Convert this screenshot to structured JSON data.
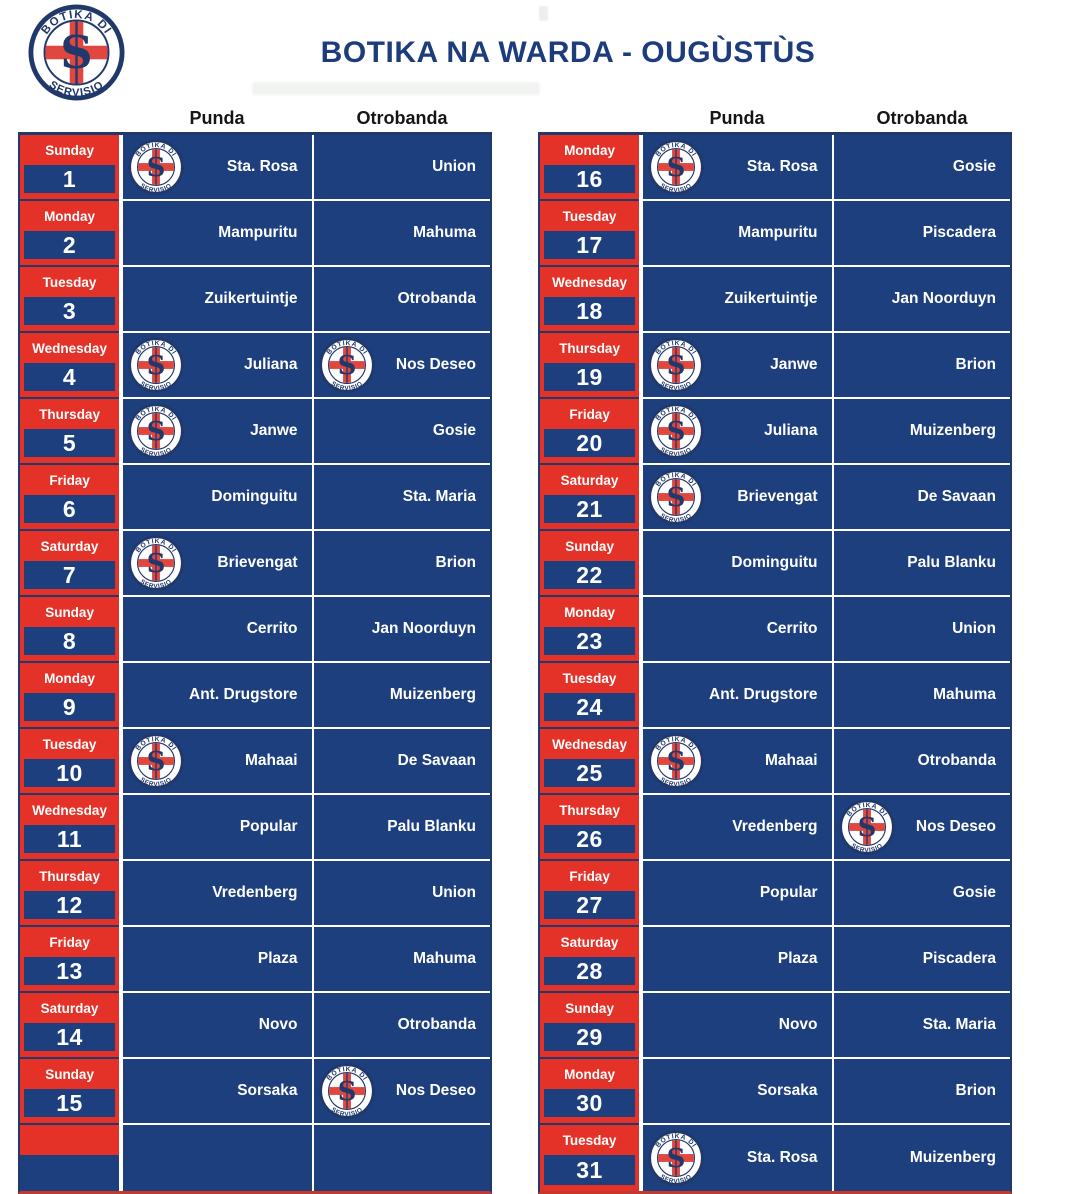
{
  "page": {
    "title": "BOTIKA NA WARDA - OUGÙSTÙS",
    "logo": {
      "top_text": "BOTIKA DI",
      "bottom_text": "SERVISIO"
    },
    "column_headers": {
      "punda": "Punda",
      "otrobanda": "Otrobanda"
    }
  },
  "colors": {
    "red": "#e43229",
    "navy": "#1d3f7e",
    "navy_dark": "#21386b",
    "red_border": "#c03a30",
    "title_navy": "#1d3c7c",
    "cell_text": "#ffffff",
    "header_text": "#151515"
  },
  "schedule": {
    "tables": [
      {
        "name": "days-1-15",
        "rows": [
          {
            "day": "Sunday",
            "date": "1",
            "punda": "Sta. Rosa",
            "punda_logo": true,
            "otrobanda": "Union",
            "otrobanda_logo": false
          },
          {
            "day": "Monday",
            "date": "2",
            "punda": "Mampuritu",
            "punda_logo": false,
            "otrobanda": "Mahuma",
            "otrobanda_logo": false
          },
          {
            "day": "Tuesday",
            "date": "3",
            "punda": "Zuikertuintje",
            "punda_logo": false,
            "otrobanda": "Otrobanda",
            "otrobanda_logo": false
          },
          {
            "day": "Wednesday",
            "date": "4",
            "punda": "Juliana",
            "punda_logo": true,
            "otrobanda": "Nos Deseo",
            "otrobanda_logo": true
          },
          {
            "day": "Thursday",
            "date": "5",
            "punda": "Janwe",
            "punda_logo": true,
            "otrobanda": "Gosie",
            "otrobanda_logo": false
          },
          {
            "day": "Friday",
            "date": "6",
            "punda": "Dominguitu",
            "punda_logo": false,
            "otrobanda": "Sta. Maria",
            "otrobanda_logo": false
          },
          {
            "day": "Saturday",
            "date": "7",
            "punda": "Brievengat",
            "punda_logo": true,
            "otrobanda": "Brion",
            "otrobanda_logo": false
          },
          {
            "day": "Sunday",
            "date": "8",
            "punda": "Cerrito",
            "punda_logo": false,
            "otrobanda": "Jan Noorduyn",
            "otrobanda_logo": false
          },
          {
            "day": "Monday",
            "date": "9",
            "punda": "Ant. Drugstore",
            "punda_logo": false,
            "otrobanda": "Muizenberg",
            "otrobanda_logo": false
          },
          {
            "day": "Tuesday",
            "date": "10",
            "punda": "Mahaai",
            "punda_logo": true,
            "otrobanda": "De Savaan",
            "otrobanda_logo": false
          },
          {
            "day": "Wednesday",
            "date": "11",
            "punda": "Popular",
            "punda_logo": false,
            "otrobanda": "Palu Blanku",
            "otrobanda_logo": false
          },
          {
            "day": "Thursday",
            "date": "12",
            "punda": "Vredenberg",
            "punda_logo": false,
            "otrobanda": "Union",
            "otrobanda_logo": false
          },
          {
            "day": "Friday",
            "date": "13",
            "punda": "Plaza",
            "punda_logo": false,
            "otrobanda": "Mahuma",
            "otrobanda_logo": false
          },
          {
            "day": "Saturday",
            "date": "14",
            "punda": "Novo",
            "punda_logo": false,
            "otrobanda": "Otrobanda",
            "otrobanda_logo": false
          },
          {
            "day": "Sunday",
            "date": "15",
            "punda": "Sorsaka",
            "punda_logo": false,
            "otrobanda": "Nos Deseo",
            "otrobanda_logo": true
          },
          {
            "day": "",
            "date": "",
            "punda": "",
            "punda_logo": false,
            "otrobanda": "",
            "otrobanda_logo": false,
            "empty": true
          }
        ]
      },
      {
        "name": "days-16-31",
        "rows": [
          {
            "day": "Monday",
            "date": "16",
            "punda": "Sta. Rosa",
            "punda_logo": true,
            "otrobanda": "Gosie",
            "otrobanda_logo": false
          },
          {
            "day": "Tuesday",
            "date": "17",
            "punda": "Mampuritu",
            "punda_logo": false,
            "otrobanda": "Piscadera",
            "otrobanda_logo": false
          },
          {
            "day": "Wednesday",
            "date": "18",
            "punda": "Zuikertuintje",
            "punda_logo": false,
            "otrobanda": "Jan Noorduyn",
            "otrobanda_logo": false
          },
          {
            "day": "Thursday",
            "date": "19",
            "punda": "Janwe",
            "punda_logo": true,
            "otrobanda": "Brion",
            "otrobanda_logo": false
          },
          {
            "day": "Friday",
            "date": "20",
            "punda": "Juliana",
            "punda_logo": true,
            "otrobanda": "Muizenberg",
            "otrobanda_logo": false
          },
          {
            "day": "Saturday",
            "date": "21",
            "punda": "Brievengat",
            "punda_logo": true,
            "otrobanda": "De Savaan",
            "otrobanda_logo": false
          },
          {
            "day": "Sunday",
            "date": "22",
            "punda": "Dominguitu",
            "punda_logo": false,
            "otrobanda": "Palu Blanku",
            "otrobanda_logo": false
          },
          {
            "day": "Monday",
            "date": "23",
            "punda": "Cerrito",
            "punda_logo": false,
            "otrobanda": "Union",
            "otrobanda_logo": false
          },
          {
            "day": "Tuesday",
            "date": "24",
            "punda": "Ant. Drugstore",
            "punda_logo": false,
            "otrobanda": "Mahuma",
            "otrobanda_logo": false
          },
          {
            "day": "Wednesday",
            "date": "25",
            "punda": "Mahaai",
            "punda_logo": true,
            "otrobanda": "Otrobanda",
            "otrobanda_logo": false
          },
          {
            "day": "Thursday",
            "date": "26",
            "punda": "Vredenberg",
            "punda_logo": false,
            "otrobanda": "Nos Deseo",
            "otrobanda_logo": true
          },
          {
            "day": "Friday",
            "date": "27",
            "punda": "Popular",
            "punda_logo": false,
            "otrobanda": "Gosie",
            "otrobanda_logo": false
          },
          {
            "day": "Saturday",
            "date": "28",
            "punda": "Plaza",
            "punda_logo": false,
            "otrobanda": "Piscadera",
            "otrobanda_logo": false
          },
          {
            "day": "Sunday",
            "date": "29",
            "punda": "Novo",
            "punda_logo": false,
            "otrobanda": "Sta. Maria",
            "otrobanda_logo": false
          },
          {
            "day": "Monday",
            "date": "30",
            "punda": "Sorsaka",
            "punda_logo": false,
            "otrobanda": "Brion",
            "otrobanda_logo": false
          },
          {
            "day": "Tuesday",
            "date": "31",
            "punda": "Sta. Rosa",
            "punda_logo": true,
            "otrobanda": "Muizenberg",
            "otrobanda_logo": false
          }
        ]
      }
    ]
  }
}
